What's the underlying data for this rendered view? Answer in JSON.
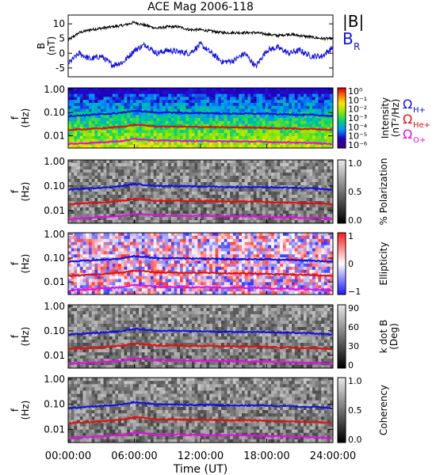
{
  "title": "ACE Mag 2006-118",
  "colors": {
    "black": "#000000",
    "blue": "#1010e0",
    "red": "#e01010",
    "magenta": "#e010e0"
  },
  "xaxis": {
    "label": "Time (UT)",
    "ticks": [
      "00:00:00",
      "06:00:00",
      "12:00:00",
      "18:00:00",
      "24:00:00"
    ],
    "range_hours": [
      0,
      24
    ]
  },
  "freq_ticks": [
    "1.00",
    "0.10",
    "0.01"
  ],
  "freq_label": "f\n(Hz)",
  "top_panel": {
    "ylabel": "B\n(nT)",
    "yticks": [
      "10",
      "5",
      "0",
      "-5"
    ],
    "ylim": [
      -8,
      13
    ],
    "legend": {
      "b_total": "|B|",
      "b_r": "B",
      "b_r_sub": "R"
    }
  },
  "cyclotron_labels": [
    {
      "base": "Ω",
      "sub": "H+",
      "color": "#1010e0"
    },
    {
      "base": "Ω",
      "sub": "He+",
      "color": "#e01010"
    },
    {
      "base": "Ω",
      "sub": "O+",
      "color": "#e010e0"
    }
  ],
  "panels": [
    {
      "name": "intensity",
      "colorbar_label": "Intensity\n(nT²/Hz)",
      "colorbar_ticks": [
        "10⁰",
        "10⁻¹",
        "10⁻²",
        "10⁻³",
        "10⁻⁴",
        "10⁻⁵",
        "10⁻⁶"
      ],
      "colormap": "rainbow"
    },
    {
      "name": "polarization",
      "colorbar_label": "% Polarization",
      "colorbar_ticks": [
        "1.0",
        "0.5",
        "0.0"
      ],
      "colormap": "gray"
    },
    {
      "name": "ellipticity",
      "colorbar_label": "Ellipticity",
      "colorbar_ticks": [
        "1",
        "0",
        "−1"
      ],
      "colormap": "bwr"
    },
    {
      "name": "kdotb",
      "colorbar_label": "k dot B\n(Deg)",
      "colorbar_ticks": [
        "90",
        "60",
        "30",
        "0"
      ],
      "colormap": "gray"
    },
    {
      "name": "coherency",
      "colorbar_label": "Coherency",
      "colorbar_ticks": [
        "1.0",
        "0.5",
        "0.0"
      ],
      "colormap": "gray"
    }
  ],
  "chart_data": {
    "type": "line",
    "title": "ACE Mag 2006-118",
    "xlabel": "Time (UT)",
    "ylabel": "B (nT)",
    "ylim": [
      -8,
      13
    ],
    "x": [
      0,
      1,
      2,
      3,
      4,
      5,
      6,
      7,
      8,
      9,
      10,
      11,
      12,
      13,
      14,
      15,
      16,
      17,
      18,
      19,
      20,
      21,
      22,
      23,
      24
    ],
    "series": [
      {
        "name": "|B|",
        "values": [
          4.5,
          7,
          8,
          8.5,
          9,
          9.5,
          10.5,
          9.5,
          8.5,
          9,
          9,
          8,
          8,
          7.5,
          7,
          7,
          7,
          7,
          6.5,
          6,
          6.5,
          6,
          5.5,
          5,
          5
        ]
      },
      {
        "name": "B_R",
        "values": [
          -3.5,
          0,
          -2,
          -1,
          -4,
          -3,
          1,
          3,
          0,
          1,
          0.5,
          0,
          3,
          0,
          -3,
          -2.5,
          0,
          -4.5,
          1,
          2,
          0,
          1,
          -1,
          -1,
          2
        ]
      },
      {
        "name": "ΩH+ (Hz)",
        "values": [
          0.07,
          0.075,
          0.08,
          0.085,
          0.09,
          0.1,
          0.12,
          0.11,
          0.1,
          0.1,
          0.1,
          0.095,
          0.095,
          0.095,
          0.09,
          0.09,
          0.09,
          0.09,
          0.09,
          0.085,
          0.085,
          0.08,
          0.08,
          0.075,
          0.07
        ]
      },
      {
        "name": "ΩHe+ (Hz)",
        "values": [
          0.018,
          0.019,
          0.02,
          0.021,
          0.023,
          0.025,
          0.03,
          0.028,
          0.025,
          0.025,
          0.025,
          0.024,
          0.024,
          0.024,
          0.023,
          0.023,
          0.023,
          0.023,
          0.022,
          0.021,
          0.021,
          0.02,
          0.02,
          0.019,
          0.018
        ]
      },
      {
        "name": "ΩO+ (Hz)",
        "values": [
          0.0045,
          0.0047,
          0.005,
          0.0053,
          0.0057,
          0.006,
          0.0075,
          0.007,
          0.0063,
          0.0062,
          0.0062,
          0.006,
          0.006,
          0.006,
          0.0058,
          0.0058,
          0.0057,
          0.0057,
          0.0055,
          0.0053,
          0.0053,
          0.005,
          0.005,
          0.0047,
          0.0045
        ]
      }
    ]
  }
}
